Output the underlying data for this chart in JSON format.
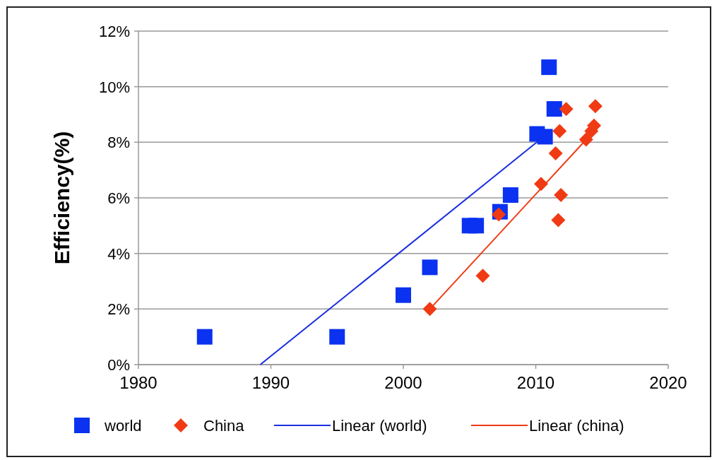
{
  "chart_data": {
    "type": "scatter",
    "ylabel": "Efficiency(%)",
    "xlim": [
      1980,
      2020
    ],
    "xticks": [
      1980,
      1990,
      2000,
      2010,
      2020
    ],
    "ylim": [
      0,
      12
    ],
    "yticks": [
      {
        "value": 0,
        "label": "0%"
      },
      {
        "value": 2,
        "label": "2%"
      },
      {
        "value": 4,
        "label": "4%"
      },
      {
        "value": 6,
        "label": "6%"
      },
      {
        "value": 8,
        "label": "8%"
      },
      {
        "value": 10,
        "label": "10%"
      },
      {
        "value": 12,
        "label": "12%"
      }
    ],
    "grid": "y",
    "legend": "bottom",
    "series": [
      {
        "name": "world",
        "color": "#0a32f0",
        "marker": "square",
        "x": [
          1985,
          1995,
          2000,
          2002,
          2005,
          2005.5,
          2007.3,
          2008.1,
          2010.1,
          2010.7,
          2011,
          2011.4
        ],
        "values": [
          1.0,
          1.0,
          2.5,
          3.5,
          5.0,
          5.0,
          5.5,
          6.1,
          8.3,
          8.2,
          10.7,
          9.2
        ]
      },
      {
        "name": "China",
        "color": "#f03a14",
        "marker": "diamond",
        "x": [
          2002,
          2006,
          2007.2,
          2010.4,
          2011.5,
          2011.8,
          2012.3,
          2011.9,
          2011.7,
          2013.8,
          2014.2,
          2014.4,
          2014.5
        ],
        "values": [
          2.0,
          3.2,
          5.4,
          6.5,
          7.6,
          8.4,
          9.2,
          6.1,
          5.2,
          8.1,
          8.4,
          8.6,
          9.3
        ]
      },
      {
        "name": "Linear (world)",
        "type": "line",
        "color": "#1a2ee0",
        "x": [
          1989.2,
          2010.6
        ],
        "values": [
          0,
          8.2
        ]
      },
      {
        "name": "Linear (china)",
        "type": "line",
        "color": "#f03a14",
        "x": [
          2002,
          2014.2
        ],
        "values": [
          2.0,
          8.3
        ]
      }
    ]
  }
}
